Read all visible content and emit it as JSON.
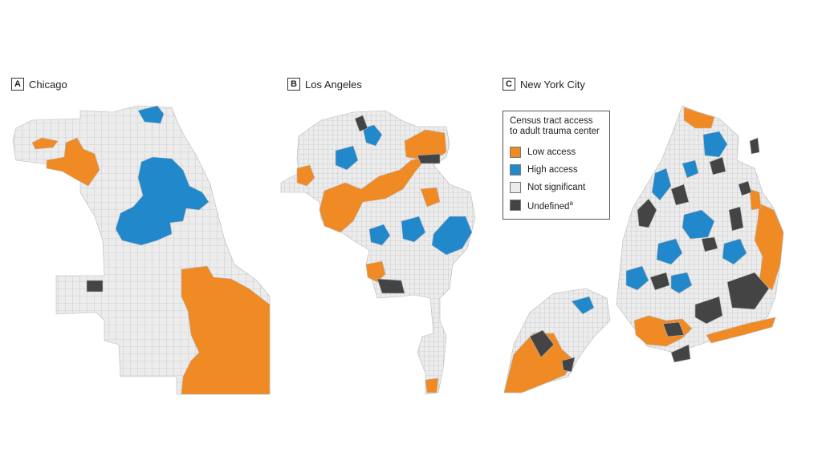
{
  "panels": [
    {
      "letter": "A",
      "title": "Chicago"
    },
    {
      "letter": "B",
      "title": "Los Angeles"
    },
    {
      "letter": "C",
      "title": "New York City"
    }
  ],
  "legend": {
    "title": "Census tract access to adult trauma center",
    "items": [
      {
        "label": "Low access",
        "color": "#f08a24"
      },
      {
        "label": "High access",
        "color": "#2288cc"
      },
      {
        "label": "Not significant",
        "color": "#ececec"
      },
      {
        "label": "Undefined",
        "superscript": "a",
        "color": "#444444"
      }
    ]
  },
  "colors": {
    "low": "#f08a24",
    "high": "#2288cc",
    "not_significant": "#ececec",
    "undefined": "#444444",
    "tract_border": "#b8b8b8"
  }
}
